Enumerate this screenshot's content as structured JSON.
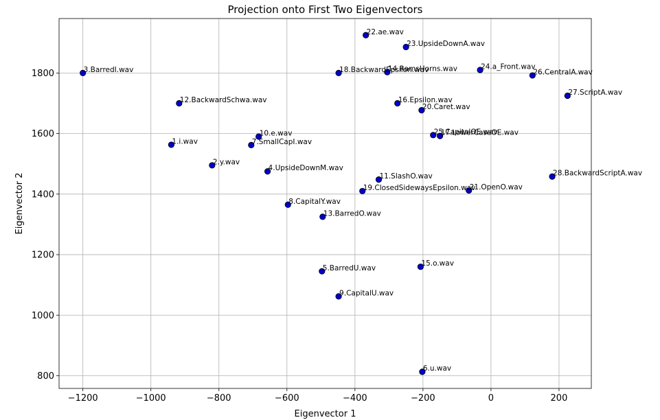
{
  "chart_data": {
    "type": "scatter",
    "title": "Projection onto First Two Eigenvectors",
    "xlabel": "Eigenvector 1",
    "ylabel": "Eigenvector 2",
    "xlim": [
      -1270,
      295
    ],
    "ylim": [
      758,
      1980
    ],
    "xticks": [
      -1200,
      -1000,
      -800,
      -600,
      -400,
      -200,
      0,
      200
    ],
    "yticks": [
      800,
      1000,
      1200,
      1400,
      1600,
      1800
    ],
    "xtick_labels": [
      "−1200",
      "−1000",
      "−800",
      "−600",
      "−400",
      "−200",
      "0",
      "200"
    ],
    "ytick_labels": [
      "800",
      "1000",
      "1200",
      "1400",
      "1600",
      "1800"
    ],
    "grid": true,
    "marker_color": "#0000cc",
    "points": [
      {
        "label": "1.i.wav",
        "x": -940,
        "y": 1563
      },
      {
        "label": "2.y.wav",
        "x": -820,
        "y": 1495
      },
      {
        "label": "3.BarredI.wav",
        "x": -1200,
        "y": 1800
      },
      {
        "label": "4.UpsideDownM.wav",
        "x": -657,
        "y": 1475
      },
      {
        "label": "5.BarredU.wav",
        "x": -497,
        "y": 1145
      },
      {
        "label": "6.u.wav",
        "x": -202,
        "y": 813
      },
      {
        "label": "7.SmallCapI.wav",
        "x": -705,
        "y": 1562
      },
      {
        "label": "8.CapitalY.wav",
        "x": -597,
        "y": 1365
      },
      {
        "label": "9.CapitalU.wav",
        "x": -448,
        "y": 1062
      },
      {
        "label": "10.e.wav",
        "x": -683,
        "y": 1590
      },
      {
        "label": "11.SlashO.wav",
        "x": -330,
        "y": 1448
      },
      {
        "label": "12.BackwardSchwa.wav",
        "x": -917,
        "y": 1700
      },
      {
        "label": "13.BarredO.wav",
        "x": -495,
        "y": 1325
      },
      {
        "label": "14.RamsHorns.wav",
        "x": -305,
        "y": 1803
      },
      {
        "label": "15.o.wav",
        "x": -207,
        "y": 1160
      },
      {
        "label": "16.Epsilon.wav",
        "x": -275,
        "y": 1700
      },
      {
        "label": "17.LowerCaseOE.wav",
        "x": -150,
        "y": 1592
      },
      {
        "label": "18.BackwardEpsilon.wav",
        "x": -448,
        "y": 1800
      },
      {
        "label": "19.ClosedSidewaysEpsilon.wav",
        "x": -378,
        "y": 1410
      },
      {
        "label": "20.Caret.wav",
        "x": -204,
        "y": 1677
      },
      {
        "label": "21.OpenO.wav",
        "x": -65,
        "y": 1412
      },
      {
        "label": "22.ae.wav",
        "x": -368,
        "y": 1925
      },
      {
        "label": "23.UpsideDownA.wav",
        "x": -250,
        "y": 1886
      },
      {
        "label": "24.a_Front.wav",
        "x": -32,
        "y": 1810
      },
      {
        "label": "25.CapitalOE.wav",
        "x": -170,
        "y": 1595
      },
      {
        "label": "26.CentralA.wav",
        "x": 122,
        "y": 1792
      },
      {
        "label": "27.ScriptA.wav",
        "x": 225,
        "y": 1725
      },
      {
        "label": "28.BackwardScriptA.wav",
        "x": 180,
        "y": 1458
      }
    ]
  }
}
